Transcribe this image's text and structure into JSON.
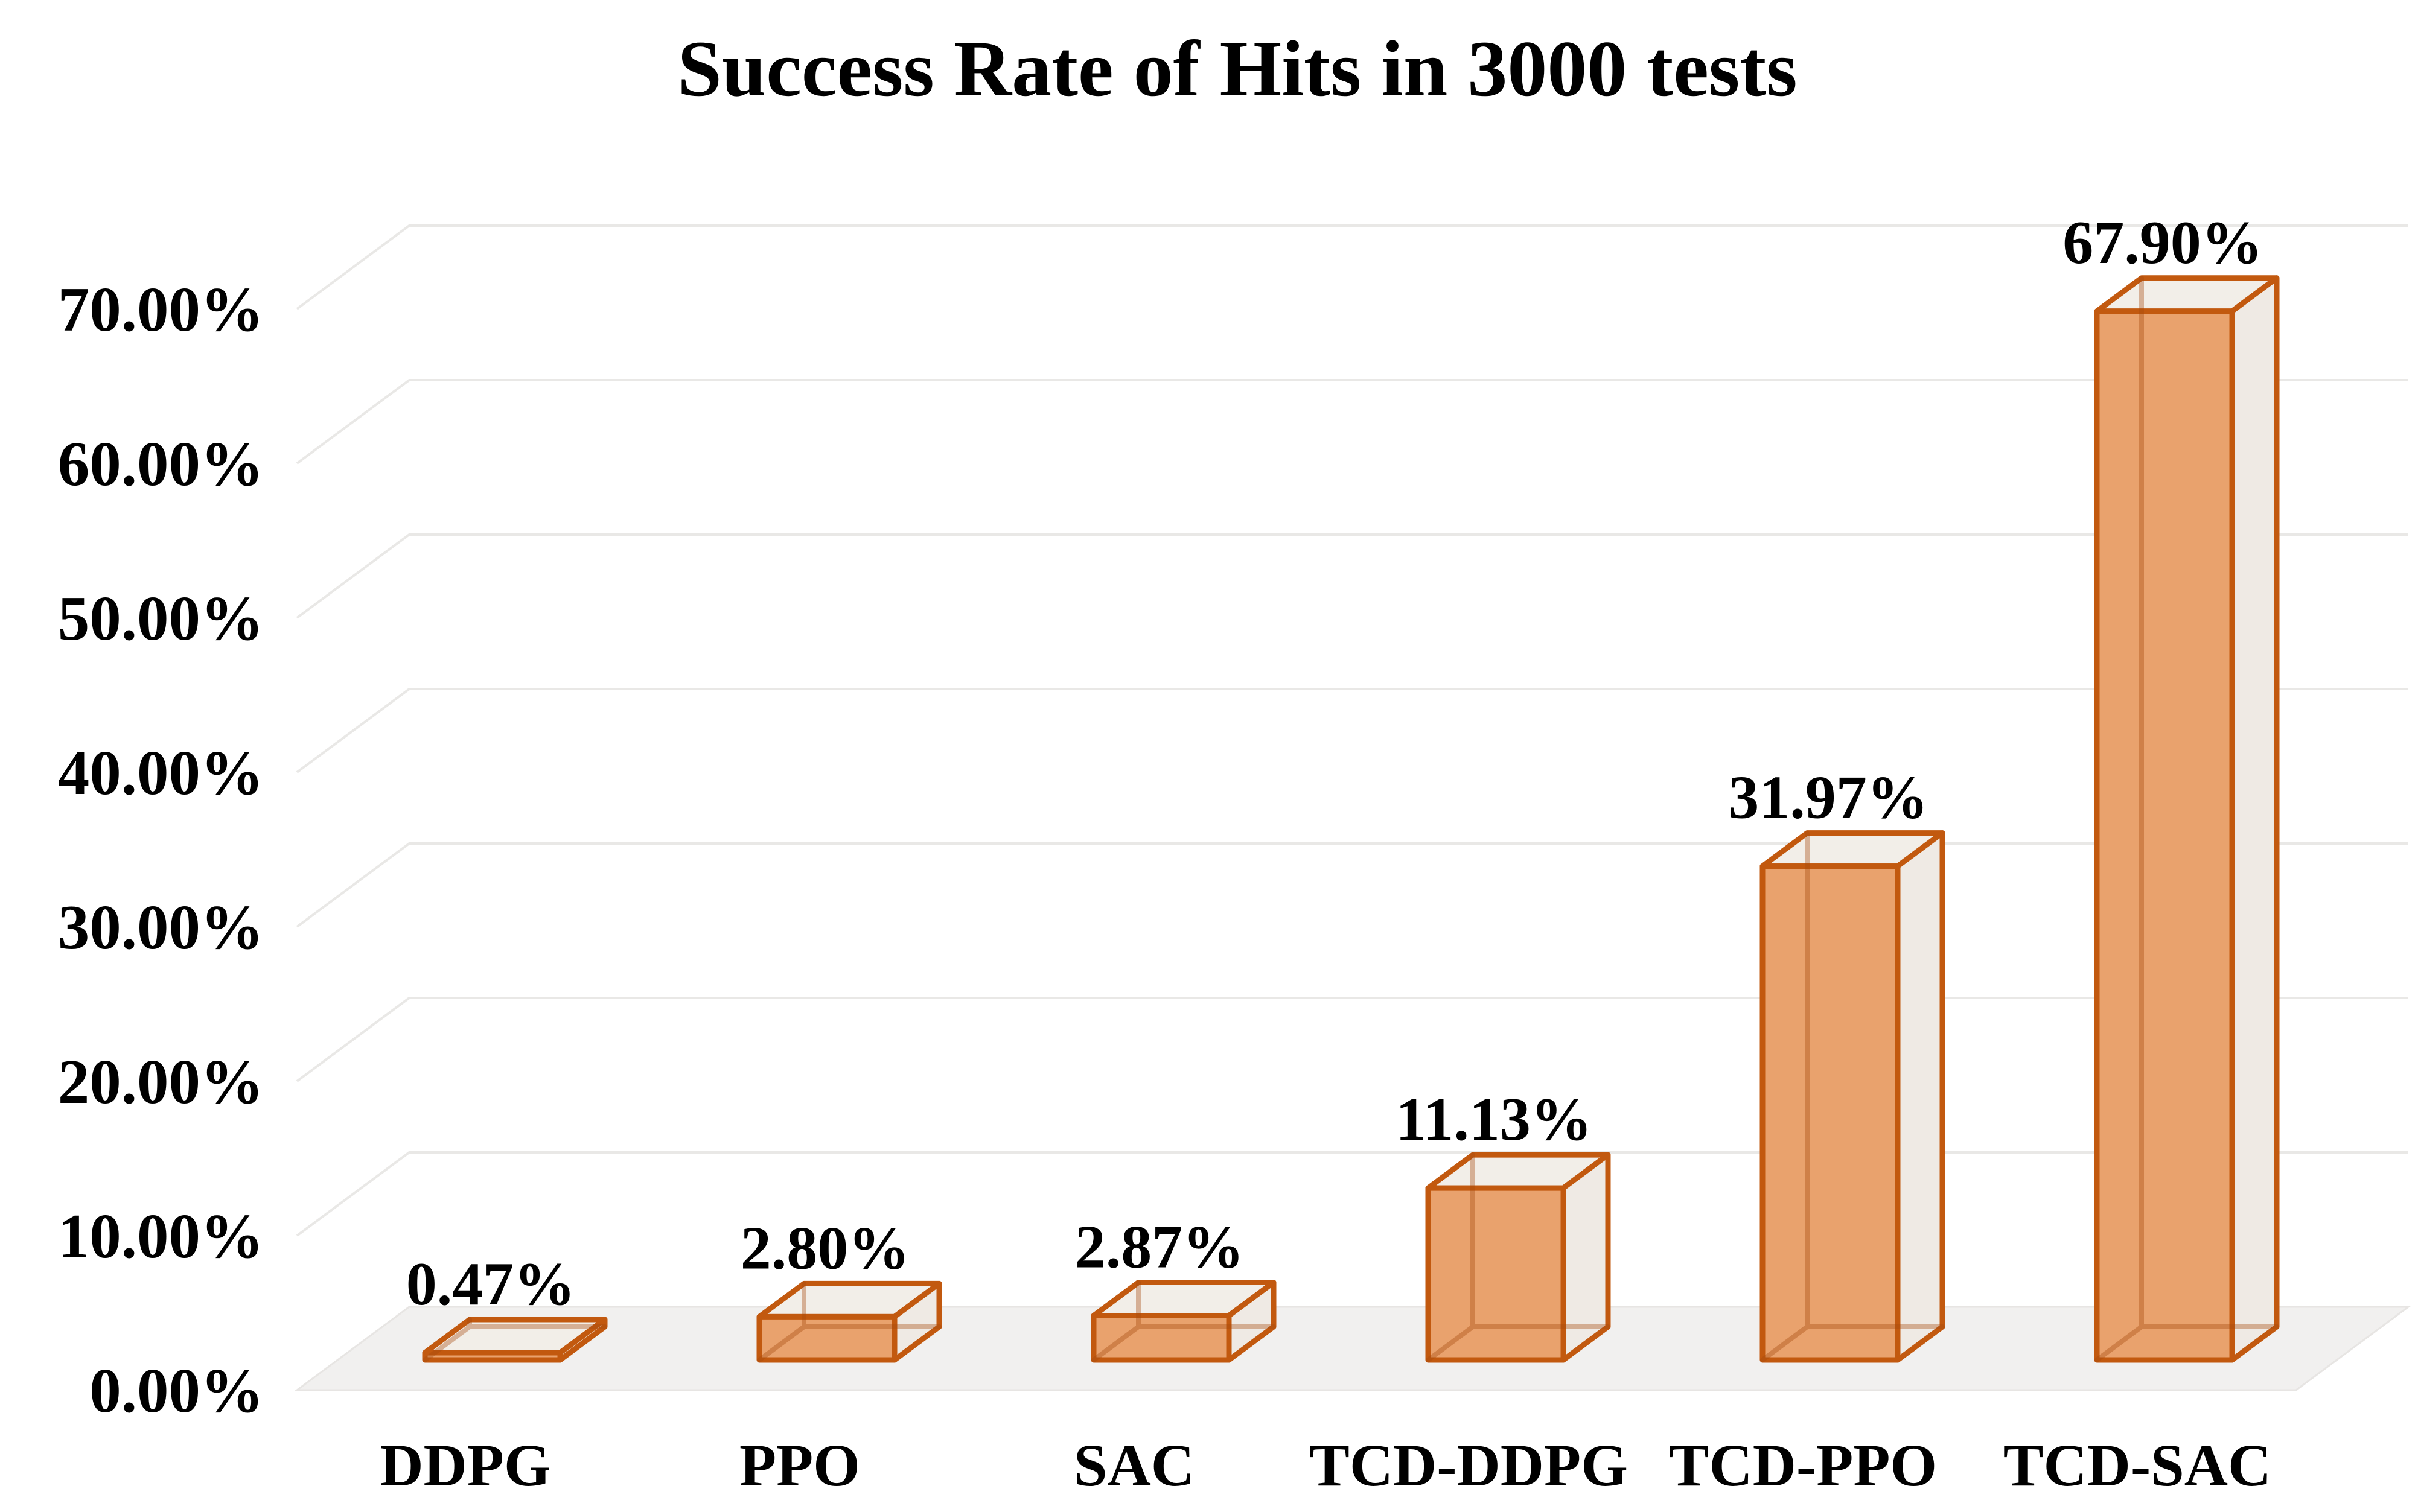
{
  "chart_data": {
    "type": "bar",
    "variant": "3d-column",
    "title": "Success Rate of Hits in 3000 tests",
    "categories": [
      "DDPG",
      "PPO",
      "SAC",
      "TCD-DDPG",
      "TCD-PPO",
      "TCD-SAC"
    ],
    "values": [
      0.47,
      2.8,
      2.87,
      11.13,
      31.97,
      67.9
    ],
    "data_labels": [
      "0.47%",
      "2.80%",
      "2.87%",
      "11.13%",
      "31.97%",
      "67.90%"
    ],
    "series_name": "Success Rate",
    "xlabel": "",
    "ylabel": "",
    "y_ticks": [
      {
        "value": 0,
        "label": "0.00%"
      },
      {
        "value": 10,
        "label": "10.00%"
      },
      {
        "value": 20,
        "label": "20.00%"
      },
      {
        "value": 30,
        "label": "30.00%"
      },
      {
        "value": 40,
        "label": "40.00%"
      },
      {
        "value": 50,
        "label": "50.00%"
      },
      {
        "value": 60,
        "label": "60.00%"
      },
      {
        "value": 70,
        "label": "70.00%"
      }
    ],
    "ylim": [
      0,
      70
    ],
    "grid": true,
    "legend": false,
    "colors": {
      "bar_front": "#E9A26D",
      "bar_top": "#F2EEE8",
      "bar_side": "#EFEAE4",
      "bar_edge": "#C2590F",
      "hidden_edge": "#A64A0C",
      "gridline": "#E9E8E6",
      "floor": "#F1F0EF",
      "floor_edge": "#E7E5E3",
      "text": "#000000",
      "background": "#FFFFFF"
    }
  }
}
